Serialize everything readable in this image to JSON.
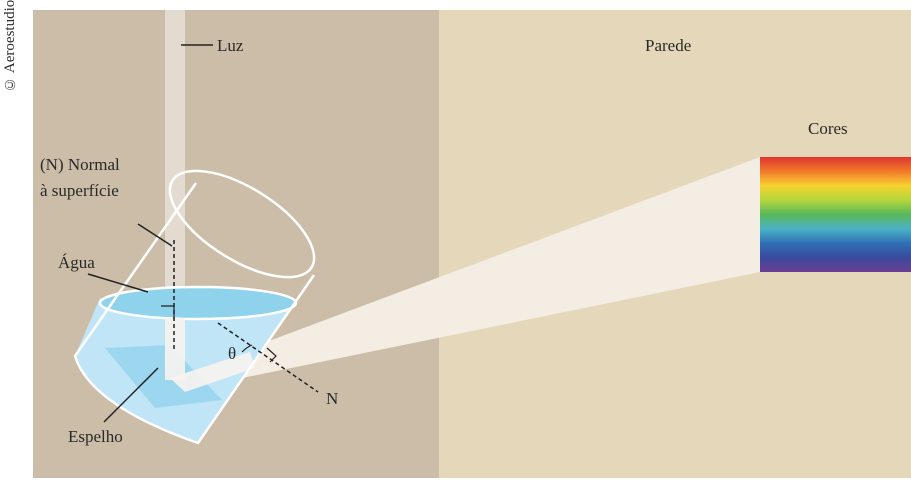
{
  "copyright": "© Aeroestudio",
  "labels": {
    "light": "Luz",
    "wall": "Parede",
    "colors": "Cores",
    "normal_line1": "(N) Normal",
    "normal_line2": "à superfície",
    "water": "Água",
    "mirror": "Espelho",
    "theta": "θ",
    "n": "N"
  },
  "spectrum_colors": [
    "#e2342f",
    "#f07a2b",
    "#f6d12f",
    "#b4d53c",
    "#59b85a",
    "#4bb3c6",
    "#2f6fb5",
    "#3a4a9d",
    "#6c3f93"
  ],
  "palette": {
    "left_background": "#cbbda7",
    "wall_background": "#e5d7b9",
    "water": "#bfe5f6",
    "water_surface": "#8fd2ec",
    "light_beam": "#f4ede4"
  }
}
